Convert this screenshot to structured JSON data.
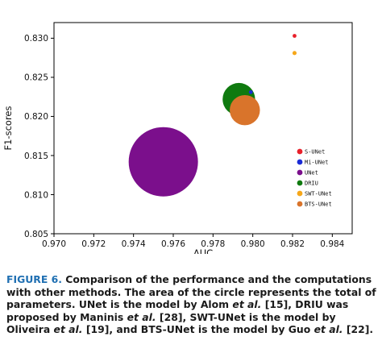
{
  "chart_data": {
    "type": "scatter",
    "xlabel": "AUC",
    "ylabel": "F1-scores",
    "xlim": [
      0.97,
      0.985
    ],
    "ylim": [
      0.805,
      0.832
    ],
    "xticks": [
      "0.970",
      "0.972",
      "0.974",
      "0.976",
      "0.978",
      "0.980",
      "0.982",
      "0.984"
    ],
    "yticks": [
      "0.805",
      "0.810",
      "0.815",
      "0.820",
      "0.825",
      "0.830"
    ],
    "legend_position": "right",
    "series": [
      {
        "name": "S-UNet",
        "x": 0.9821,
        "y": 0.8303,
        "relative_area": 0.12,
        "color": "#e8202a"
      },
      {
        "name": "Mi-UNet",
        "x": 0.9799,
        "y": 0.8231,
        "relative_area": 0.05,
        "color": "#1a2bd6"
      },
      {
        "name": "UNet",
        "x": 0.9755,
        "y": 0.8142,
        "relative_area": 100,
        "color": "#7b0f8c"
      },
      {
        "name": "DRIU",
        "x": 0.9793,
        "y": 0.8222,
        "relative_area": 22,
        "color": "#0f7a0f"
      },
      {
        "name": "SWT-UNet",
        "x": 0.9821,
        "y": 0.8281,
        "relative_area": 0.35,
        "color": "#f6a71a"
      },
      {
        "name": "BTS-UNet",
        "x": 0.9796,
        "y": 0.8208,
        "relative_area": 19,
        "color": "#d9742b"
      }
    ]
  },
  "caption": {
    "label": "FIGURE 6.",
    "text_1": "Comparison of the performance and the computations with other methods. The area of the circle represents the total of parameters. UNet is the model by Alom ",
    "etal_1": "et al.",
    "text_2": " [15], DRIU was proposed by Maninis ",
    "etal_2": "et al.",
    "text_3": " [28], SWT-UNet is the model by Oliveira ",
    "etal_3": "et al.",
    "text_4": " [19], and BTS-UNet is the model by Guo ",
    "etal_4": "et al.",
    "text_5": " [22]."
  }
}
